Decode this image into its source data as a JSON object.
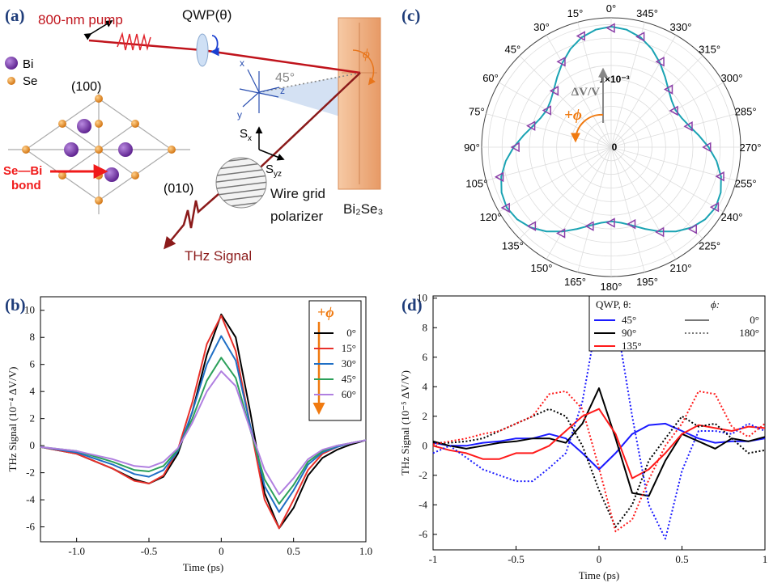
{
  "panel_labels": [
    "(a)",
    "(b)",
    "(c)",
    "(d)"
  ],
  "diagram": {
    "pump": "800-nm pump",
    "qwp": "QWP(θ)",
    "axis_x": "x",
    "axis_y": "y",
    "axis_z": "z",
    "angle": "45°",
    "phi": "ϕ",
    "bi": "Bi",
    "se": "Se",
    "dir_100": "(100)",
    "dir_010": "(010)",
    "bond": [
      "Se—Bi",
      "bond"
    ],
    "sx": {
      "main": "S",
      "sub": "x"
    },
    "syz": {
      "main": "S",
      "sub": "yz"
    },
    "sample": "Bi₂Se₃",
    "polarizer": [
      "Wire grid",
      "polarizer"
    ],
    "signal": "THz Signal"
  },
  "chart_data": [
    {
      "type": "line",
      "xlabel": "Time (ps)",
      "ylabel": "THz Signal (10⁻⁴ ΔV/V)",
      "x": [
        -1.25,
        -1.0,
        -0.75,
        -0.6,
        -0.5,
        -0.4,
        -0.3,
        -0.2,
        -0.1,
        0,
        0.1,
        0.2,
        0.3,
        0.4,
        0.5,
        0.6,
        0.7,
        0.8,
        0.9,
        1.0
      ],
      "series": [
        {
          "name": "0°",
          "color": "#000000",
          "values": [
            -0.1,
            -0.6,
            -1.7,
            -2.5,
            -2.8,
            -2.3,
            -0.6,
            2.5,
            6.7,
            9.7,
            8.0,
            2.5,
            -3.5,
            -6.1,
            -4.6,
            -2.2,
            -0.9,
            -0.3,
            0.1,
            0.4
          ]
        },
        {
          "name": "15°",
          "color": "#e8312b",
          "values": [
            -0.1,
            -0.6,
            -1.7,
            -2.6,
            -2.8,
            -2.2,
            -0.3,
            3.2,
            7.5,
            9.6,
            7.0,
            1.5,
            -4.0,
            -6.1,
            -4.0,
            -1.8,
            -0.6,
            -0.1,
            0.2,
            0.4
          ]
        },
        {
          "name": "30°",
          "color": "#1f6fc5",
          "values": [
            -0.1,
            -0.5,
            -1.4,
            -2.1,
            -2.3,
            -1.8,
            -0.4,
            2.5,
            6.0,
            8.1,
            6.3,
            1.5,
            -3.0,
            -4.9,
            -3.3,
            -1.4,
            -0.5,
            -0.1,
            0.2,
            0.4
          ]
        },
        {
          "name": "45°",
          "color": "#2ca05a",
          "values": [
            -0.1,
            -0.4,
            -1.2,
            -1.8,
            -1.9,
            -1.5,
            -0.3,
            2.0,
            4.8,
            6.5,
            5.0,
            1.2,
            -2.5,
            -4.3,
            -2.9,
            -1.2,
            -0.4,
            0,
            0.2,
            0.4
          ]
        },
        {
          "name": "60°",
          "color": "#b07fe0",
          "values": [
            -0.1,
            -0.4,
            -1.0,
            -1.5,
            -1.6,
            -1.2,
            -0.2,
            1.7,
            4.0,
            5.5,
            4.4,
            1.2,
            -1.8,
            -3.6,
            -2.4,
            -1.0,
            -0.3,
            0,
            0.2,
            0.4
          ]
        }
      ],
      "xlim": [
        -1.25,
        1.0
      ],
      "ylim": [
        -7.1,
        11
      ],
      "xticks": [
        {
          "value": -1,
          "label": "-1.0"
        },
        -0.5,
        0,
        0.5,
        {
          "value": 1,
          "label": "1.0"
        }
      ],
      "yticks": [
        -6,
        -4,
        -2,
        0,
        2,
        4,
        6,
        8,
        10
      ],
      "grid": false,
      "legend_title": "+ϕ",
      "legend": "upper right"
    },
    {
      "type": "polar",
      "theta_ticks": [
        {
          "value": 0,
          "label": "0°"
        },
        {
          "value": 15,
          "label": "15°"
        },
        {
          "value": 30,
          "label": "30°"
        },
        {
          "value": 45,
          "label": "45°"
        },
        {
          "value": 60,
          "label": "60°"
        },
        {
          "value": 75,
          "label": "75°"
        },
        {
          "value": 90,
          "label": "90°"
        },
        {
          "value": 105,
          "label": "105°"
        },
        {
          "value": 120,
          "label": "120°"
        },
        {
          "value": 135,
          "label": "135°"
        },
        {
          "value": 150,
          "label": "150°"
        },
        {
          "value": 165,
          "label": "165°"
        },
        {
          "value": 180,
          "label": "180°"
        },
        {
          "value": 195,
          "label": "195°"
        },
        {
          "value": 210,
          "label": "210°"
        },
        {
          "value": 225,
          "label": "225°"
        },
        {
          "value": 240,
          "label": "240°"
        },
        {
          "value": 255,
          "label": "255°"
        },
        {
          "value": 270,
          "label": "270°"
        },
        {
          "value": 285,
          "label": "285°"
        },
        {
          "value": 300,
          "label": "300°"
        },
        {
          "value": 315,
          "label": "315°"
        },
        {
          "value": 330,
          "label": "330°"
        },
        {
          "value": 345,
          "label": "345°"
        }
      ],
      "rlim": [
        0,
        1.9
      ],
      "rgrid": [
        0.2,
        0.4,
        0.6,
        0.8,
        1.0,
        1.2,
        1.4,
        1.6,
        1.8
      ],
      "rticks": [
        0,
        {
          "value": 1,
          "label": "1×10⁻³"
        }
      ],
      "radial_label": "ΔV/V",
      "direction_label": "+ϕ",
      "series": [
        {
          "color": "#1aa3b3",
          "x": [
            0,
            7.5,
            15,
            22.5,
            30,
            37.5,
            45,
            52.5,
            60,
            67.5,
            75,
            82.5,
            90,
            97.5,
            105,
            112.5,
            120,
            127.5,
            135,
            142.5,
            150,
            157.5,
            165,
            172.5,
            180,
            187.5,
            195,
            202.5,
            210,
            217.5,
            225,
            232.5,
            240,
            247.5,
            255,
            262.5,
            270,
            277.5,
            285,
            292.5,
            300,
            307.5,
            315,
            322.5,
            330,
            337.5,
            345,
            352.5
          ],
          "values": [
            1.77,
            1.74,
            1.67,
            1.56,
            1.43,
            1.3,
            1.19,
            1.12,
            1.09,
            1.12,
            1.19,
            1.3,
            1.43,
            1.56,
            1.67,
            1.74,
            1.77,
            1.74,
            1.67,
            1.56,
            1.43,
            1.3,
            1.19,
            1.12,
            1.09,
            1.12,
            1.19,
            1.3,
            1.43,
            1.56,
            1.67,
            1.74,
            1.77,
            1.74,
            1.67,
            1.56,
            1.43,
            1.3,
            1.19,
            1.12,
            1.09,
            1.12,
            1.19,
            1.3,
            1.43,
            1.56,
            1.67,
            1.74
          ]
        },
        {
          "color": "#8b3fa8",
          "marker": "triangle",
          "x": [
            0,
            15,
            30,
            45,
            60,
            75,
            90,
            105,
            120,
            135,
            150,
            165,
            180,
            195,
            210,
            225,
            240,
            255,
            270,
            285,
            300,
            315,
            330,
            345
          ],
          "values": [
            1.75,
            1.69,
            1.45,
            1.17,
            1.08,
            1.21,
            1.4,
            1.69,
            1.78,
            1.64,
            1.46,
            1.2,
            1.11,
            1.17,
            1.44,
            1.7,
            1.76,
            1.66,
            1.41,
            1.18,
            1.07,
            1.2,
            1.45,
            1.68
          ]
        }
      ]
    },
    {
      "type": "line",
      "xlabel": "Time (ps)",
      "ylabel": "THz Signal (10⁻⁵ ΔV/V)",
      "x": [
        -1,
        -0.9,
        -0.8,
        -0.7,
        -0.6,
        -0.5,
        -0.4,
        -0.3,
        -0.2,
        -0.1,
        0,
        0.1,
        0.2,
        0.3,
        0.4,
        0.5,
        0.6,
        0.7,
        0.8,
        0.9,
        1
      ],
      "series": [
        {
          "color": "#1a1aff",
          "dash": "solid",
          "values": [
            0.2,
            0,
            0,
            0.2,
            0.3,
            0.5,
            0.5,
            0.8,
            0.5,
            -0.5,
            -1.6,
            -0.5,
            0.8,
            1.4,
            1.5,
            1.0,
            0.5,
            0.2,
            0.3,
            0.3,
            0.5
          ]
        },
        {
          "color": "#000000",
          "dash": "solid",
          "values": [
            0.3,
            0,
            -0.2,
            0,
            0.2,
            0.3,
            0.5,
            0.5,
            0.2,
            1.5,
            3.9,
            0.5,
            -3.2,
            -3.4,
            -1.0,
            0.8,
            0.3,
            -0.2,
            0.5,
            0.3,
            0.6
          ]
        },
        {
          "color": "#ff1a1a",
          "dash": "solid",
          "values": [
            0,
            -0.3,
            -0.5,
            -0.9,
            -0.9,
            -0.5,
            -0.5,
            0,
            1.0,
            2.0,
            2.5,
            0.8,
            -2.2,
            -1.6,
            -0.5,
            0.8,
            1.4,
            1.2,
            1.0,
            1.3,
            1.2
          ]
        },
        {
          "color": "#1a1aff",
          "dash": "dotted",
          "values": [
            -0.5,
            0,
            -0.8,
            -1.6,
            -2.0,
            -2.4,
            -2.4,
            -1.5,
            -0.5,
            3.0,
            9.3,
            8.8,
            2.0,
            -4.0,
            -6.3,
            -1.7,
            1.0,
            1.0,
            0.8,
            1.5,
            1.0
          ]
        },
        {
          "color": "#000000",
          "dash": "dotted",
          "values": [
            0.2,
            0.2,
            0.3,
            0.5,
            1.0,
            1.5,
            2.0,
            2.5,
            2.0,
            0,
            -3.0,
            -5.5,
            -4.0,
            -1.0,
            0.5,
            2.0,
            1.3,
            1.5,
            0.5,
            -0.5,
            -0.3
          ]
        },
        {
          "color": "#ff1a1a",
          "dash": "dotted",
          "values": [
            0.1,
            0.3,
            0.5,
            0.8,
            1.0,
            1.5,
            2.0,
            3.5,
            3.7,
            2.5,
            -1.5,
            -5.8,
            -5.0,
            -2.3,
            0,
            1.5,
            3.7,
            3.5,
            1.3,
            0.6,
            1.5
          ]
        }
      ],
      "xlim": [
        -1,
        1
      ],
      "ylim": [
        -7.05,
        10.15
      ],
      "xticks": [
        -1,
        -0.5,
        0,
        0.5,
        1
      ],
      "yticks": [
        -6,
        -4,
        -2,
        0,
        2,
        4,
        6,
        8,
        10
      ],
      "grid": false,
      "legend": {
        "theta_title": "QWP, θ:",
        "phi_title": "ϕ:",
        "theta": [
          {
            "name": "45°",
            "color": "#1a1aff"
          },
          {
            "name": "90°",
            "color": "#000000"
          },
          {
            "name": "135°",
            "color": "#ff1a1a"
          }
        ],
        "phi": [
          {
            "name": "0°",
            "dash": "solid"
          },
          {
            "name": "180°",
            "dash": "dotted"
          }
        ]
      }
    }
  ]
}
